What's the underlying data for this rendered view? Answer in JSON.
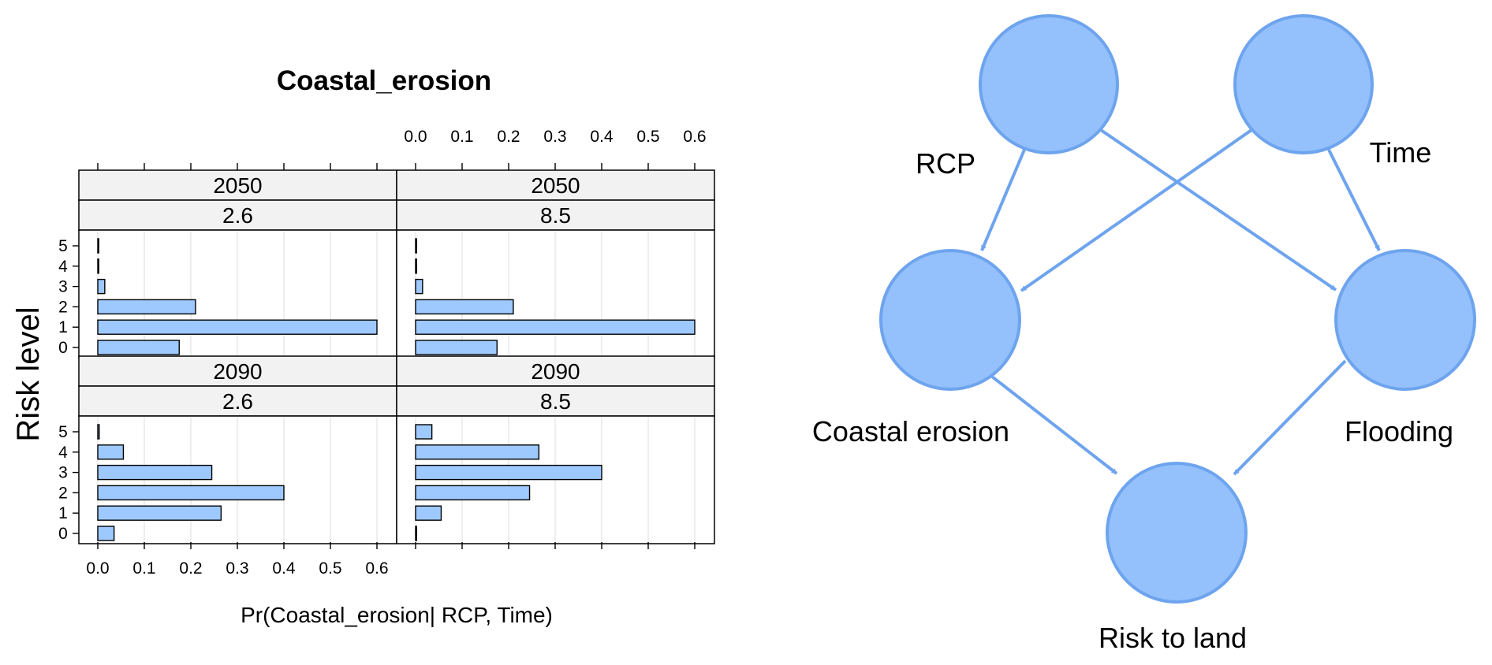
{
  "chart_data": {
    "type": "bar",
    "orientation": "horizontal",
    "title": "Coastal_erosion",
    "xlabel": "Pr(Coastal_erosion| RCP, Time)",
    "ylabel": "Risk level",
    "xlim": [
      0,
      0.6
    ],
    "x_ticks": [
      "0.0",
      "0.1",
      "0.2",
      "0.3",
      "0.4",
      "0.5",
      "0.6"
    ],
    "categories": [
      "0",
      "1",
      "2",
      "3",
      "4",
      "5"
    ],
    "bar_color": "#9ec9ff",
    "panels": [
      {
        "time": "2050",
        "rcp": "2.6",
        "values": [
          0.175,
          0.6,
          0.21,
          0.015,
          0.001,
          0.001
        ]
      },
      {
        "time": "2050",
        "rcp": "8.5",
        "values": [
          0.175,
          0.6,
          0.21,
          0.015,
          0.001,
          0.001
        ]
      },
      {
        "time": "2090",
        "rcp": "2.6",
        "values": [
          0.035,
          0.265,
          0.4,
          0.245,
          0.055,
          0.003
        ]
      },
      {
        "time": "2090",
        "rcp": "8.5",
        "values": [
          0.002,
          0.055,
          0.245,
          0.4,
          0.265,
          0.035
        ]
      }
    ]
  },
  "diagram": {
    "node_color": "#94c0fb",
    "edge_color": "#6ea4ee",
    "nodes": [
      {
        "id": "rcp",
        "label": "RCP"
      },
      {
        "id": "time",
        "label": "Time"
      },
      {
        "id": "coastal",
        "label": "Coastal erosion"
      },
      {
        "id": "flooding",
        "label": "Flooding"
      },
      {
        "id": "risk",
        "label": "Risk to land"
      }
    ],
    "edges": [
      [
        "rcp",
        "coastal"
      ],
      [
        "rcp",
        "flooding"
      ],
      [
        "time",
        "coastal"
      ],
      [
        "time",
        "flooding"
      ],
      [
        "coastal",
        "risk"
      ],
      [
        "flooding",
        "risk"
      ]
    ]
  }
}
